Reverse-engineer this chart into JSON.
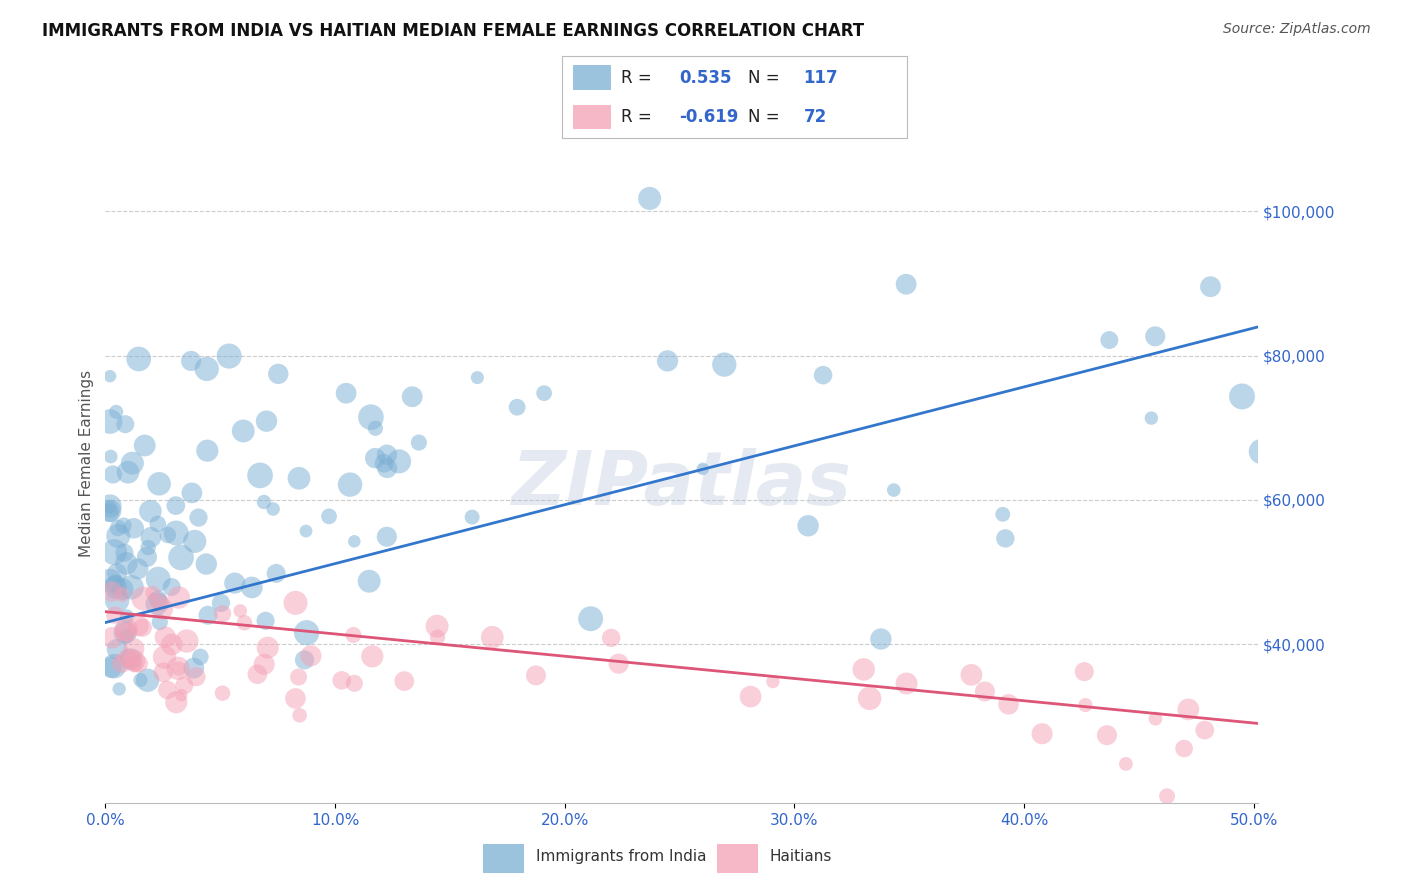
{
  "title": "IMMIGRANTS FROM INDIA VS HAITIAN MEDIAN FEMALE EARNINGS CORRELATION CHART",
  "source_text": "Source: ZipAtlas.com",
  "ylabel": "Median Female Earnings",
  "xlim": [
    0.0,
    0.502
  ],
  "ylim": [
    18000,
    112000
  ],
  "xtick_vals": [
    0.0,
    0.1,
    0.2,
    0.3,
    0.4,
    0.5
  ],
  "xticklabels": [
    "0.0%",
    "10.0%",
    "20.0%",
    "30.0%",
    "40.0%",
    "50.0%"
  ],
  "right_ytick_vals": [
    40000,
    60000,
    80000,
    100000
  ],
  "right_ytick_labels": [
    "$40,000",
    "$60,000",
    "$80,000",
    "$100,000"
  ],
  "grid_color": "#cccccc",
  "bg_color": "#ffffff",
  "blue_dot_color": "#7bafd4",
  "pink_dot_color": "#f4a0b5",
  "blue_line_color": "#3377cc",
  "pink_line_color": "#dd5577",
  "blue_line_x": [
    0.0,
    0.502
  ],
  "blue_line_y": [
    43000,
    84000
  ],
  "pink_line_x": [
    0.0,
    0.502
  ],
  "pink_line_y": [
    44500,
    29000
  ],
  "legend_R_blue": "0.535",
  "legend_N_blue": "117",
  "legend_R_pink": "-0.619",
  "legend_N_pink": "72",
  "legend_label_blue": "Immigrants from India",
  "legend_label_pink": "Haitians",
  "watermark_text": "ZIPatlas",
  "watermark_color": "#aabbd4",
  "title_color": "#111111",
  "source_color": "#555555",
  "tick_color_x": "#3366cc",
  "tick_color_y": "#3366cc",
  "ylabel_color": "#555555",
  "tick_fontsize": 11,
  "title_fontsize": 12,
  "legend_text_color": "#3366cc"
}
